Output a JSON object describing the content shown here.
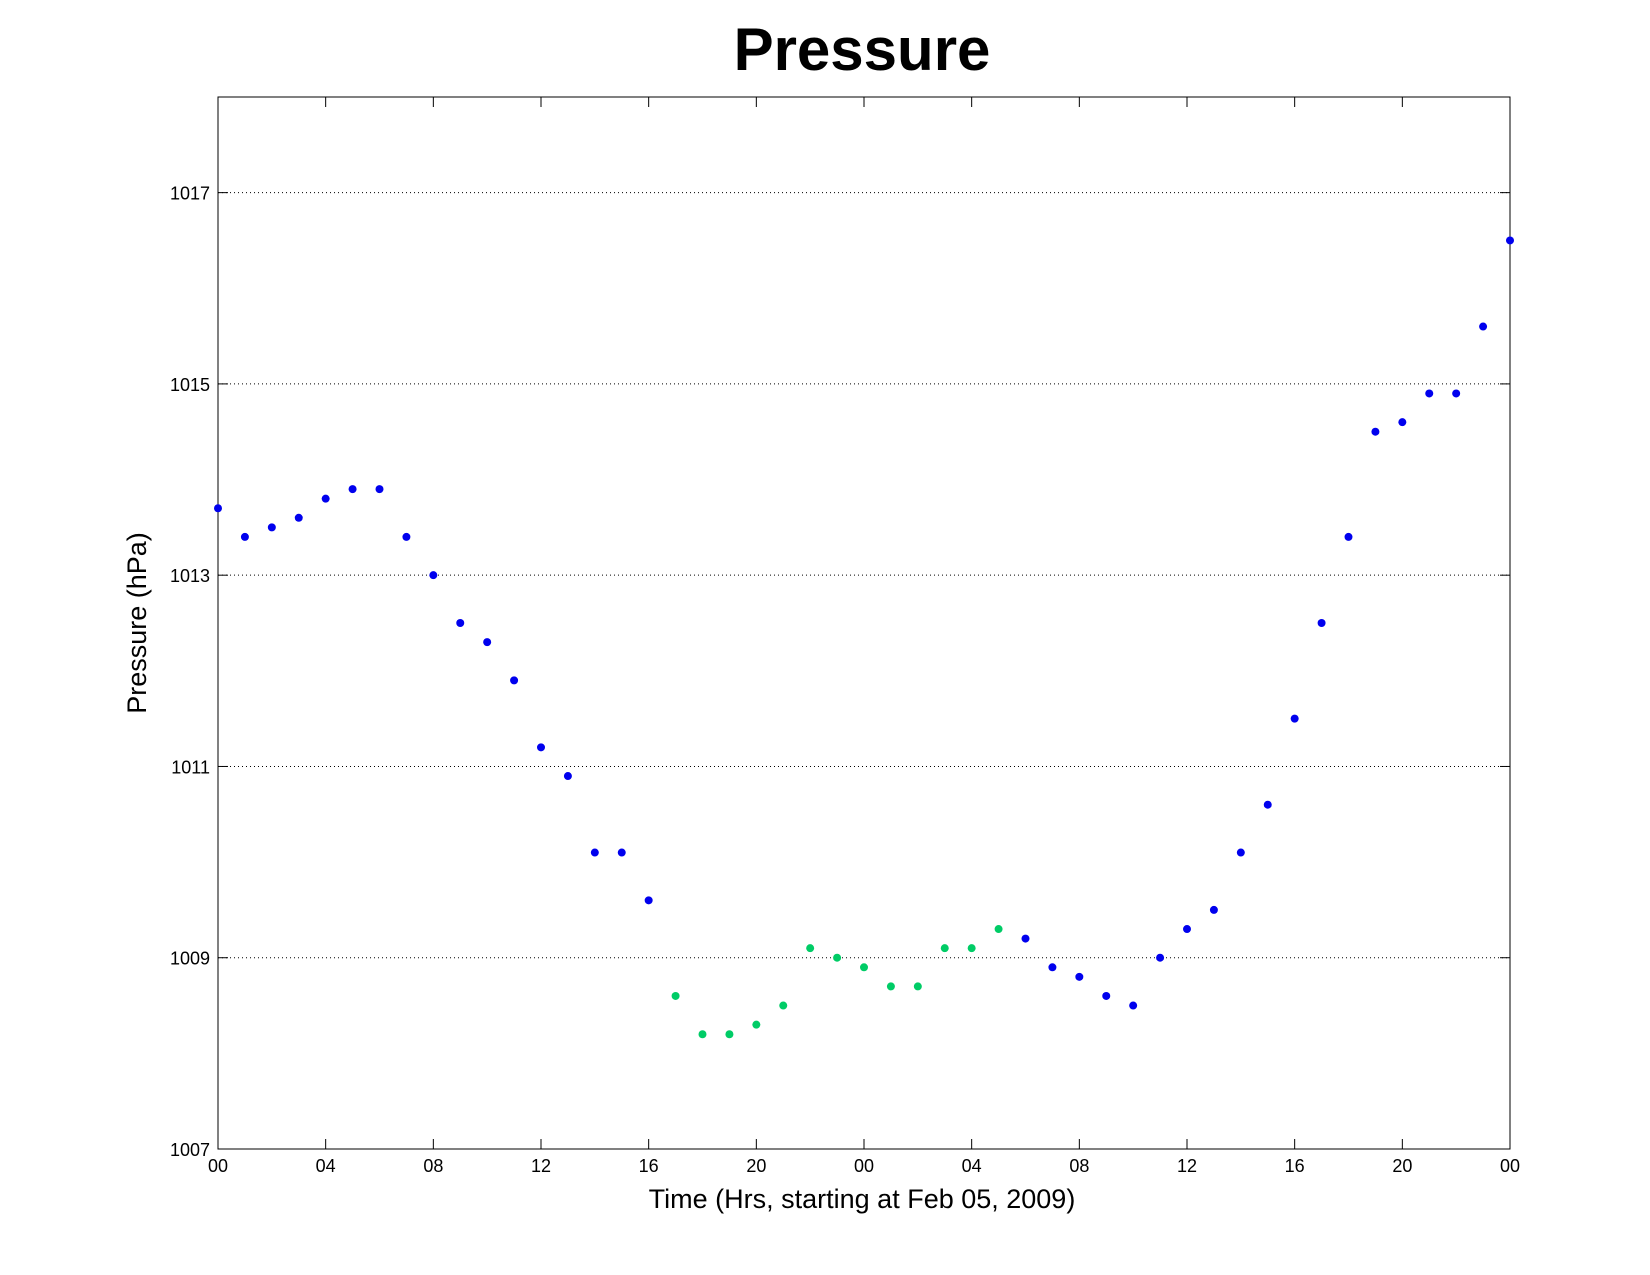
{
  "chart_data": {
    "type": "scatter",
    "title": "Pressure",
    "xlabel": "Time (Hrs, starting at Feb 05, 2009)",
    "ylabel": "Pressure (hPa)",
    "x_unit": "hours",
    "xlim": [
      0,
      48
    ],
    "ylim": [
      1007,
      1018
    ],
    "x_ticks": [
      0,
      4,
      8,
      12,
      16,
      20,
      24,
      28,
      32,
      36,
      40,
      44,
      48
    ],
    "x_tick_labels": [
      "00",
      "04",
      "08",
      "12",
      "16",
      "20",
      "00",
      "04",
      "08",
      "12",
      "16",
      "20",
      "00"
    ],
    "y_ticks": [
      1007,
      1009,
      1011,
      1013,
      1015,
      1017
    ],
    "y_tick_labels": [
      "1007",
      "1009",
      "1011",
      "1013",
      "1015",
      "1017"
    ],
    "grid": "horizontal dotted",
    "series": [
      {
        "color": "#0000ee",
        "points": [
          [
            0,
            1013.7
          ],
          [
            1,
            1013.4
          ],
          [
            2,
            1013.5
          ],
          [
            3,
            1013.6
          ],
          [
            4,
            1013.8
          ],
          [
            5,
            1013.9
          ],
          [
            6,
            1013.9
          ],
          [
            7,
            1013.4
          ],
          [
            8,
            1013.0
          ],
          [
            9,
            1012.5
          ],
          [
            10,
            1012.3
          ],
          [
            11,
            1011.9
          ],
          [
            12,
            1011.2
          ],
          [
            13,
            1010.9
          ],
          [
            14,
            1010.1
          ],
          [
            15,
            1010.1
          ],
          [
            16,
            1009.6
          ],
          [
            30,
            1009.2
          ],
          [
            31,
            1008.9
          ],
          [
            32,
            1008.8
          ],
          [
            33,
            1008.6
          ],
          [
            34,
            1008.5
          ],
          [
            35,
            1009.0
          ],
          [
            36,
            1009.3
          ],
          [
            37,
            1009.5
          ],
          [
            38,
            1010.1
          ],
          [
            39,
            1010.6
          ],
          [
            40,
            1011.5
          ],
          [
            41,
            1012.5
          ],
          [
            42,
            1013.4
          ],
          [
            43,
            1014.5
          ],
          [
            44,
            1014.6
          ],
          [
            45,
            1014.9
          ],
          [
            46,
            1014.9
          ],
          [
            47,
            1015.6
          ],
          [
            48,
            1016.5
          ]
        ]
      },
      {
        "color": "#00cc66",
        "points": [
          [
            17,
            1008.6
          ],
          [
            18,
            1008.2
          ],
          [
            19,
            1008.2
          ],
          [
            20,
            1008.3
          ],
          [
            21,
            1008.5
          ],
          [
            22,
            1009.1
          ],
          [
            23,
            1009.0
          ],
          [
            24,
            1008.9
          ],
          [
            25,
            1008.7
          ],
          [
            26,
            1008.7
          ],
          [
            27,
            1009.1
          ],
          [
            28,
            1009.1
          ],
          [
            29,
            1009.3
          ]
        ]
      }
    ]
  }
}
